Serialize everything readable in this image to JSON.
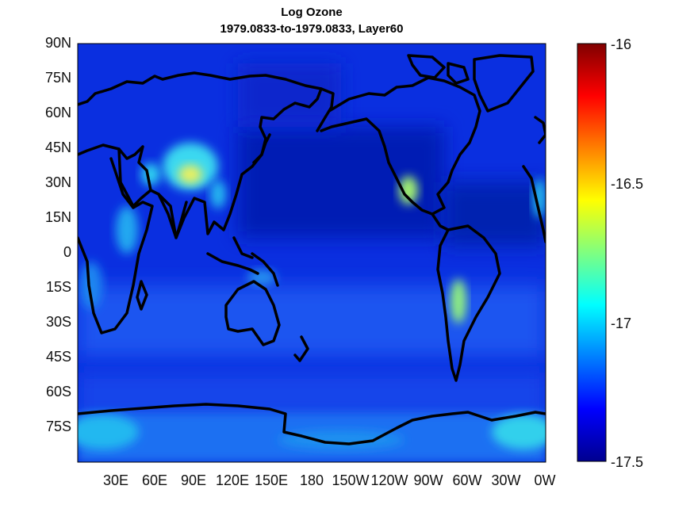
{
  "title": {
    "line1": "Log Ozone",
    "line2": "1979.0833-to-1979.0833,  Layer60"
  },
  "lat_ticks": [
    "90N",
    "75N",
    "60N",
    "45N",
    "30N",
    "15N",
    "0",
    "15S",
    "30S",
    "45S",
    "60S",
    "75S"
  ],
  "lon_ticks": [
    "30E",
    "60E",
    "90E",
    "120E",
    "150E",
    "180",
    "150W",
    "120W",
    "90W",
    "60W",
    "30W",
    "0W"
  ],
  "colorbar": {
    "min": -17.5,
    "max": -16,
    "tick_labels": [
      "-16",
      "-16.5",
      "-17",
      "-17.5"
    ],
    "colormap": "jet",
    "colors": [
      "#00008f",
      "#0000ff",
      "#00ffff",
      "#ffff00",
      "#ff0000",
      "#800000"
    ]
  },
  "map": {
    "projection": "equirectangular",
    "coastline_color": "#000000",
    "background_color": "#0a2fe0",
    "high_ozone_regions": [
      "Tibetan Plateau",
      "South Asia",
      "Western North America",
      "Andes",
      "Antarctica"
    ]
  }
}
